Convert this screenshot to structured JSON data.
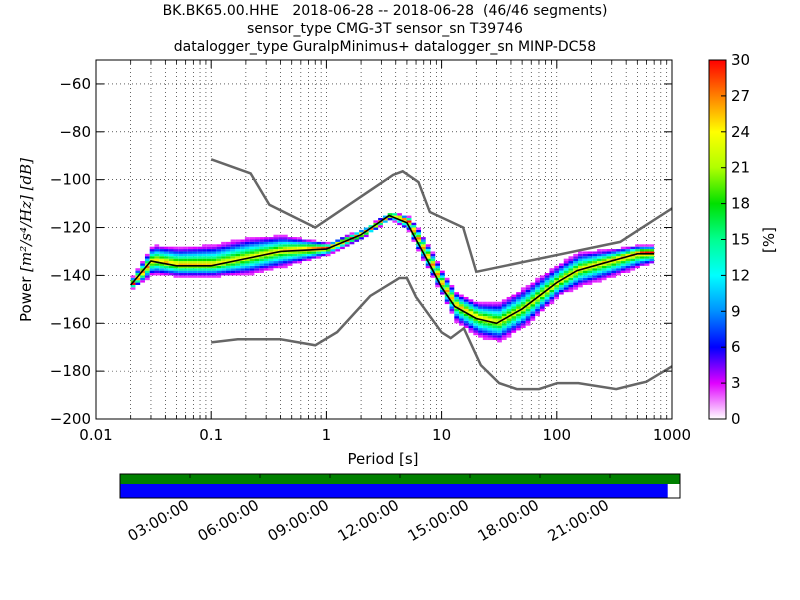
{
  "title": {
    "line1": "BK.BK65.00.HHE   2018-06-28 -- 2018-06-28  (46/46 segments)",
    "line2": "sensor_type CMG-3T sensor_sn T39746",
    "line3": "datalogger_type GuralpMinimus+ datalogger_sn MINP-DC58"
  },
  "chart_data": {
    "type": "heatmap",
    "xlabel": "Period [s]",
    "ylabel_prefix": "Power",
    "ylabel_units": "[m²/s⁴/Hz] [dB]",
    "x_scale": "log",
    "xlim": [
      0.01,
      1000
    ],
    "ylim": [
      -200,
      -50
    ],
    "x_ticks": [
      0.01,
      0.1,
      1,
      10,
      100,
      1000
    ],
    "x_tick_labels": [
      "0.01",
      "0.1",
      "1",
      "10",
      "100",
      "1000"
    ],
    "y_ticks": [
      -200,
      -180,
      -160,
      -140,
      -120,
      -100,
      -80,
      -60
    ],
    "y_tick_labels": [
      "−200",
      "−180",
      "−160",
      "−140",
      "−120",
      "−100",
      "−80",
      "−60"
    ],
    "grid": true,
    "colorbar": {
      "label": "[%]",
      "range": [
        0,
        30
      ],
      "ticks": [
        0,
        3,
        6,
        9,
        12,
        15,
        18,
        21,
        24,
        27,
        30
      ],
      "tick_labels": [
        "0",
        "3",
        "6",
        "9",
        "12",
        "15",
        "18",
        "21",
        "24",
        "27",
        "30"
      ]
    },
    "noise_models": {
      "color": "#666666",
      "nhnm": {
        "name": "NHNM",
        "x": [
          0.1,
          0.22,
          0.32,
          0.8,
          3.8,
          4.6,
          6.3,
          7.9,
          15.4,
          20,
          354.8,
          1000
        ],
        "y": [
          -91.5,
          -97.4,
          -110.5,
          -120,
          -98,
          -96.5,
          -101,
          -113.5,
          -120,
          -138.5,
          -126,
          -112
        ]
      },
      "nlnm": {
        "name": "NLNM",
        "x": [
          0.1,
          0.17,
          0.4,
          0.8,
          1.24,
          2.4,
          4.3,
          5.0,
          6.0,
          10.0,
          12.0,
          15.6,
          21.9,
          31.6,
          45,
          70,
          101,
          154,
          328,
          600,
          1000
        ],
        "y": [
          -168,
          -166.7,
          -166.7,
          -169.2,
          -163.7,
          -148.6,
          -141.1,
          -141.1,
          -149,
          -163.8,
          -166.2,
          -162.1,
          -177.5,
          -185,
          -187.5,
          -187.5,
          -185,
          -185,
          -187.5,
          -184.4,
          -178
        ]
      }
    },
    "mean_psd": {
      "color": "#000000",
      "x": [
        0.02,
        0.03,
        0.05,
        0.1,
        0.2,
        0.4,
        1,
        2,
        3.5,
        5,
        6,
        8,
        10,
        13,
        20,
        30,
        50,
        100,
        150,
        250,
        500,
        700
      ],
      "y": [
        -144,
        -134,
        -136,
        -136,
        -133,
        -130,
        -129,
        -123,
        -115,
        -118,
        -125,
        -136,
        -145,
        -153,
        -158,
        -160,
        -154,
        -143,
        -138,
        -135,
        -131,
        -131
      ]
    },
    "psd_cloud_spread_db": {
      "x": [
        0.02,
        0.03,
        0.05,
        0.1,
        0.2,
        0.4,
        1,
        2,
        3.5,
        5,
        6,
        8,
        10,
        13,
        20,
        30,
        50,
        100,
        150,
        250,
        500,
        700
      ],
      "upper": [
        -141,
        -128,
        -129,
        -128,
        -125,
        -124,
        -127,
        -121,
        -114,
        -116,
        -121,
        -131,
        -140,
        -148,
        -152,
        -152,
        -146,
        -136,
        -131,
        -130,
        -128,
        -128
      ],
      "lower": [
        -146,
        -140,
        -141,
        -141,
        -140,
        -137,
        -132,
        -125,
        -117,
        -122,
        -130,
        -141,
        -150,
        -160,
        -166,
        -168,
        -162,
        -149,
        -145,
        -142,
        -137,
        -135
      ]
    }
  },
  "timeline": {
    "tick_labels": [
      "03:00:00",
      "06:00:00",
      "09:00:00",
      "12:00:00",
      "15:00:00",
      "18:00:00",
      "21:00:00"
    ],
    "data_coverage_color": "#008000",
    "psd_coverage_color": "#0000ff",
    "psd_coverage_fraction": 0.978
  }
}
